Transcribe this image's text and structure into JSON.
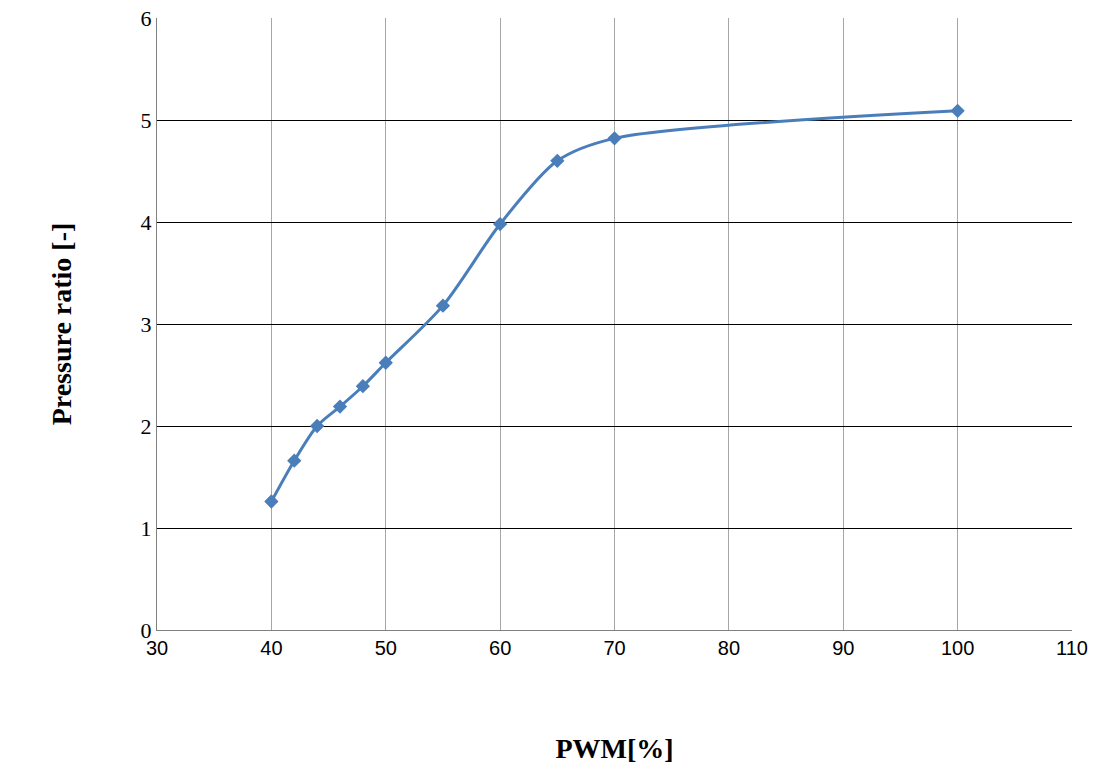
{
  "chart_data": {
    "type": "line",
    "x_label": "PWM[%]",
    "y_label": "Pressure ratio [-]",
    "x": [
      40,
      42,
      44,
      46,
      48,
      50,
      55,
      60,
      65,
      70,
      100
    ],
    "series": [
      {
        "name": "Pressure ratio",
        "color": "#4a7ebb",
        "marker": "diamond",
        "line_style": "solid",
        "values": [
          1.26,
          1.66,
          2.0,
          2.19,
          2.39,
          2.62,
          3.18,
          3.98,
          4.6,
          4.82,
          5.09
        ]
      }
    ],
    "xlim": [
      30,
      110
    ],
    "xticks": [
      30,
      40,
      50,
      60,
      70,
      80,
      90,
      100,
      110
    ],
    "ylim": [
      0,
      6
    ],
    "yticks": [
      0,
      1,
      2,
      3,
      4,
      5,
      6
    ],
    "grid": true
  }
}
